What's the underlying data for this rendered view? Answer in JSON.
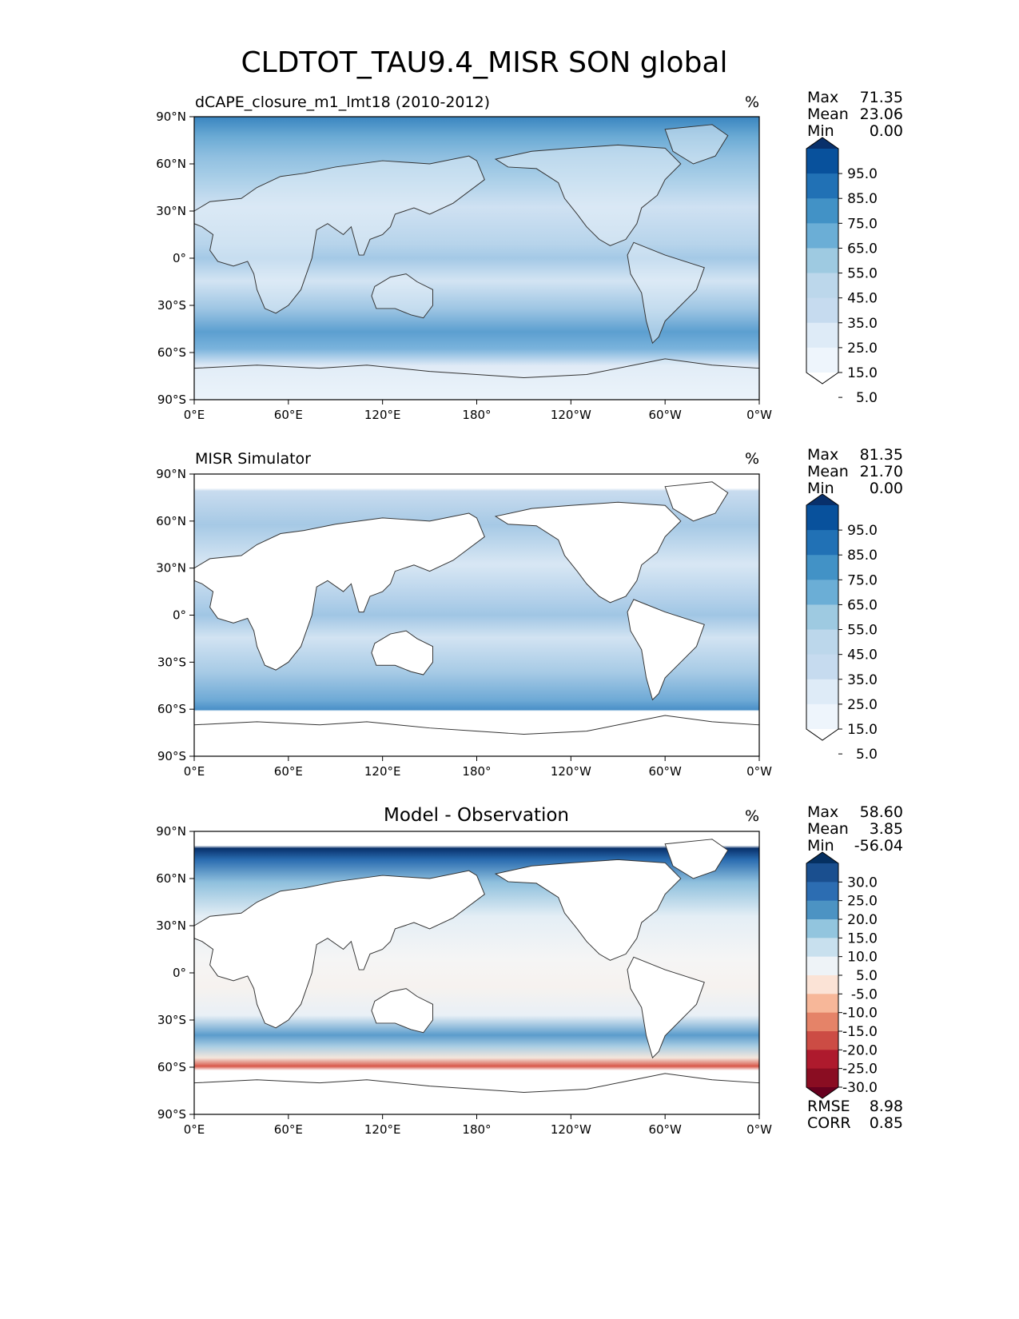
{
  "figure_title": "CLDTOT_TAU9.4_MISR SON global",
  "chart_data": [
    {
      "type": "heatmap",
      "title": "dCAPE_closure_m1_lmt18 (2010-2012)",
      "units": "%",
      "stats": [
        {
          "label": "Max",
          "value": "71.35"
        },
        {
          "label": "Mean",
          "value": "23.06"
        },
        {
          "label": "Min",
          "value": "0.00"
        }
      ],
      "xticks": [
        "0°E",
        "60°E",
        "120°E",
        "180°",
        "120°W",
        "60°W",
        "0°W"
      ],
      "yticks": [
        "90°N",
        "60°N",
        "30°N",
        "0°",
        "30°S",
        "60°S",
        "90°S"
      ],
      "xlim": [
        0,
        360
      ],
      "ylim": [
        -90,
        90
      ],
      "colorbar": {
        "ticks": [
          "95.0",
          "85.0",
          "75.0",
          "65.0",
          "55.0",
          "45.0",
          "35.0",
          "25.0",
          "15.0",
          "5.0"
        ],
        "colors": [
          "#08306b",
          "#08519c",
          "#2171b5",
          "#4292c6",
          "#6baed6",
          "#9ecae1",
          "#bcd7eb",
          "#c6dbef",
          "#deebf7",
          "#eef5fc",
          "#ffffff"
        ],
        "extend": "both"
      }
    },
    {
      "type": "heatmap",
      "title": "MISR Simulator",
      "units": "%",
      "stats": [
        {
          "label": "Max",
          "value": "81.35"
        },
        {
          "label": "Mean",
          "value": "21.70"
        },
        {
          "label": "Min",
          "value": "0.00"
        }
      ],
      "xticks": [
        "0°E",
        "60°E",
        "120°E",
        "180°",
        "120°W",
        "60°W",
        "0°W"
      ],
      "yticks": [
        "90°N",
        "60°N",
        "30°N",
        "0°",
        "30°S",
        "60°S",
        "90°S"
      ],
      "xlim": [
        0,
        360
      ],
      "ylim": [
        -90,
        90
      ],
      "colorbar": {
        "ticks": [
          "95.0",
          "85.0",
          "75.0",
          "65.0",
          "55.0",
          "45.0",
          "35.0",
          "25.0",
          "15.0",
          "5.0"
        ],
        "colors": [
          "#08306b",
          "#08519c",
          "#2171b5",
          "#4292c6",
          "#6baed6",
          "#9ecae1",
          "#bcd7eb",
          "#c6dbef",
          "#deebf7",
          "#eef5fc",
          "#ffffff"
        ],
        "extend": "both"
      }
    },
    {
      "type": "heatmap",
      "title": "Model - Observation",
      "units": "%",
      "stats": [
        {
          "label": "Max",
          "value": "58.60"
        },
        {
          "label": "Mean",
          "value": "3.85"
        },
        {
          "label": "Min",
          "value": "-56.04"
        }
      ],
      "extra_stats": [
        {
          "label": "RMSE",
          "value": "8.98"
        },
        {
          "label": "CORR",
          "value": "0.85"
        }
      ],
      "xticks": [
        "0°E",
        "60°E",
        "120°E",
        "180°",
        "120°W",
        "60°W",
        "0°W"
      ],
      "yticks": [
        "90°N",
        "60°N",
        "30°N",
        "0°",
        "30°S",
        "60°S",
        "90°S"
      ],
      "xlim": [
        0,
        360
      ],
      "ylim": [
        -90,
        90
      ],
      "colorbar": {
        "ticks": [
          "30.0",
          "25.0",
          "20.0",
          "15.0",
          "10.0",
          "5.0",
          "-5.0",
          "-10.0",
          "-15.0",
          "-20.0",
          "-25.0",
          "-30.0"
        ],
        "colors": [
          "#053061",
          "#1a4f8f",
          "#2c6db2",
          "#4c93c3",
          "#92c5de",
          "#c8e0ee",
          "#eef3f7",
          "#fbe3d6",
          "#f7b799",
          "#e58368",
          "#cc4c44",
          "#ae1a2d",
          "#8a0d22",
          "#67001f"
        ],
        "extend": "both"
      }
    }
  ]
}
